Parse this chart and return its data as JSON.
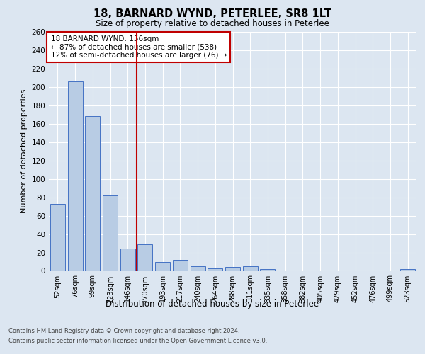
{
  "title_line1": "18, BARNARD WYND, PETERLEE, SR8 1LT",
  "title_line2": "Size of property relative to detached houses in Peterlee",
  "xlabel": "Distribution of detached houses by size in Peterlee",
  "ylabel": "Number of detached properties",
  "categories": [
    "52sqm",
    "76sqm",
    "99sqm",
    "123sqm",
    "146sqm",
    "170sqm",
    "193sqm",
    "217sqm",
    "240sqm",
    "264sqm",
    "288sqm",
    "311sqm",
    "335sqm",
    "358sqm",
    "382sqm",
    "405sqm",
    "429sqm",
    "452sqm",
    "476sqm",
    "499sqm",
    "523sqm"
  ],
  "values": [
    73,
    206,
    168,
    82,
    24,
    29,
    10,
    12,
    5,
    3,
    4,
    5,
    2,
    0,
    0,
    0,
    0,
    0,
    0,
    0,
    2
  ],
  "bar_color": "#b8cce4",
  "bar_edge_color": "#4472c4",
  "background_color": "#dce6f1",
  "plot_bg_color": "#dce6f1",
  "grid_color": "#ffffff",
  "ylim": [
    0,
    260
  ],
  "yticks": [
    0,
    20,
    40,
    60,
    80,
    100,
    120,
    140,
    160,
    180,
    200,
    220,
    240,
    260
  ],
  "property_label": "18 BARNARD WYND: 156sqm",
  "annotation_line1": "← 87% of detached houses are smaller (538)",
  "annotation_line2": "12% of semi-detached houses are larger (76) →",
  "vline_x": 4.5,
  "vline_color": "#c00000",
  "annotation_box_color": "#c00000",
  "footnote1": "Contains HM Land Registry data © Crown copyright and database right 2024.",
  "footnote2": "Contains public sector information licensed under the Open Government Licence v3.0."
}
